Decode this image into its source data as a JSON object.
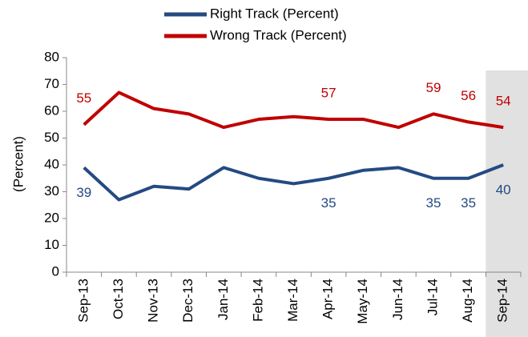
{
  "chart_data": {
    "type": "line",
    "y_label": "(Percent)",
    "categories": [
      "Sep-13",
      "Oct-13",
      "Nov-13",
      "Dec-13",
      "Jan-14",
      "Feb-14",
      "Mar-14",
      "Apr-14",
      "May-14",
      "Jun-14",
      "Jul-14",
      "Aug-14",
      "Sep-14"
    ],
    "series": [
      {
        "name": "Right Track (Percent)",
        "color": "#244a82",
        "values": [
          39,
          27,
          32,
          31,
          39,
          35,
          33,
          35,
          38,
          39,
          35,
          35,
          40
        ],
        "value_labels": [
          39,
          null,
          null,
          null,
          null,
          null,
          null,
          35,
          null,
          null,
          35,
          35,
          40
        ]
      },
      {
        "name": "Wrong Track (Percent)",
        "color": "#c00000",
        "values": [
          55,
          67,
          61,
          59,
          54,
          57,
          58,
          57,
          57,
          54,
          59,
          56,
          54
        ],
        "value_labels": [
          55,
          null,
          null,
          null,
          null,
          null,
          null,
          57,
          null,
          null,
          59,
          56,
          54
        ]
      }
    ],
    "ylim": [
      0,
      80
    ],
    "yticks": [
      0,
      10,
      20,
      30,
      40,
      50,
      60,
      70,
      80
    ],
    "highlight": 12,
    "legend": "top"
  }
}
